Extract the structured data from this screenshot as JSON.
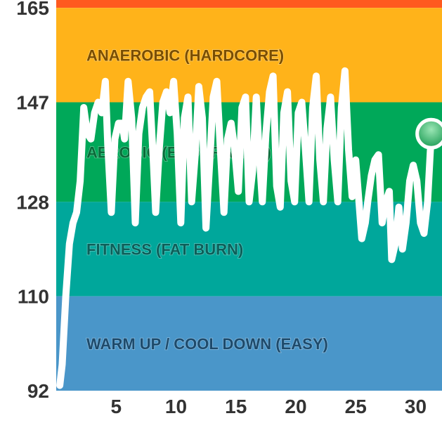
{
  "chart_data": {
    "type": "area",
    "title": "",
    "xlabel": "",
    "ylabel": "",
    "xlim": [
      0,
      32.2
    ],
    "ylim": [
      92,
      166.5
    ],
    "x_ticks": [
      5,
      10,
      15,
      20,
      25,
      30
    ],
    "y_ticks": [
      92,
      110,
      128,
      147,
      165
    ],
    "zones": [
      {
        "label": "",
        "range": [
          165,
          166.5
        ],
        "color": "#ff5a1f"
      },
      {
        "label": "ANAEROBIC  (HARDCORE)",
        "range": [
          147,
          165
        ],
        "color": "#ffb31a",
        "text_color": "#7a4e00"
      },
      {
        "label": "AEROBIC  (ENDURANCE)",
        "range": [
          128,
          147
        ],
        "color": "#00a859",
        "text_color": "#0b6b3a"
      },
      {
        "label": "FITNESS  (FAT BURN)",
        "range": [
          110,
          128
        ],
        "color": "#00a79b",
        "text_color": "#0c5f59"
      },
      {
        "label": "WARM UP / COOL DOWN (EASY)",
        "range": [
          92,
          110
        ],
        "color": "#4a96c9",
        "text_color": "#1d4a6b"
      }
    ],
    "series": [
      {
        "color": "#ffffff",
        "points": [
          [
            0.3,
            93
          ],
          [
            0.5,
            97
          ],
          [
            0.8,
            110
          ],
          [
            1.1,
            120
          ],
          [
            1.4,
            124
          ],
          [
            1.7,
            126
          ],
          [
            2.0,
            132
          ],
          [
            2.3,
            146
          ],
          [
            2.6,
            141
          ],
          [
            2.9,
            140
          ],
          [
            3.2,
            145
          ],
          [
            3.5,
            147
          ],
          [
            3.8,
            145
          ],
          [
            4.1,
            151
          ],
          [
            4.3,
            139
          ],
          [
            4.6,
            126
          ],
          [
            4.9,
            140
          ],
          [
            5.2,
            143
          ],
          [
            5.5,
            143
          ],
          [
            5.7,
            140
          ],
          [
            6.0,
            151
          ],
          [
            6.3,
            144
          ],
          [
            6.6,
            124
          ],
          [
            6.9,
            141
          ],
          [
            7.2,
            146
          ],
          [
            7.5,
            148
          ],
          [
            7.8,
            149
          ],
          [
            8.1,
            136
          ],
          [
            8.3,
            126
          ],
          [
            8.6,
            138
          ],
          [
            8.9,
            147
          ],
          [
            9.2,
            149
          ],
          [
            9.5,
            145
          ],
          [
            9.8,
            151
          ],
          [
            10.1,
            141
          ],
          [
            10.4,
            124
          ],
          [
            10.7,
            144
          ],
          [
            11.0,
            148
          ],
          [
            11.3,
            128
          ],
          [
            11.6,
            137
          ],
          [
            11.9,
            150
          ],
          [
            12.2,
            144
          ],
          [
            12.5,
            123
          ],
          [
            12.8,
            135
          ],
          [
            13.1,
            148
          ],
          [
            13.4,
            151
          ],
          [
            13.7,
            138
          ],
          [
            14.0,
            126
          ],
          [
            14.3,
            140
          ],
          [
            14.6,
            143
          ],
          [
            14.9,
            138
          ],
          [
            15.2,
            130
          ],
          [
            15.5,
            146
          ],
          [
            15.8,
            148
          ],
          [
            16.1,
            128
          ],
          [
            16.4,
            134
          ],
          [
            16.7,
            148
          ],
          [
            16.9,
            139
          ],
          [
            17.2,
            128
          ],
          [
            17.5,
            141
          ],
          [
            17.8,
            149
          ],
          [
            18.1,
            152
          ],
          [
            18.4,
            131
          ],
          [
            18.7,
            127
          ],
          [
            19.0,
            145
          ],
          [
            19.3,
            149
          ],
          [
            19.6,
            132
          ],
          [
            19.9,
            128
          ],
          [
            20.2,
            145
          ],
          [
            20.5,
            147
          ],
          [
            20.8,
            138
          ],
          [
            21.1,
            128
          ],
          [
            21.4,
            146
          ],
          [
            21.7,
            152
          ],
          [
            22.0,
            136
          ],
          [
            22.3,
            128
          ],
          [
            22.6,
            142
          ],
          [
            22.9,
            148
          ],
          [
            23.2,
            136
          ],
          [
            23.5,
            128
          ],
          [
            23.8,
            146
          ],
          [
            24.1,
            153
          ],
          [
            24.4,
            138
          ],
          [
            24.7,
            129
          ],
          [
            25.0,
            136
          ],
          [
            25.3,
            127
          ],
          [
            25.5,
            121
          ],
          [
            25.8,
            124
          ],
          [
            26.0,
            128
          ],
          [
            26.3,
            133
          ],
          [
            26.6,
            136
          ],
          [
            26.9,
            137
          ],
          [
            27.2,
            124
          ],
          [
            27.5,
            128
          ],
          [
            27.8,
            130
          ],
          [
            28.0,
            117
          ],
          [
            28.3,
            120
          ],
          [
            28.6,
            127
          ],
          [
            28.9,
            119
          ],
          [
            29.2,
            124
          ],
          [
            29.5,
            132
          ],
          [
            29.8,
            135
          ],
          [
            30.1,
            132
          ],
          [
            30.4,
            124
          ],
          [
            30.7,
            122
          ],
          [
            31.0,
            128
          ],
          [
            31.3,
            141
          ]
        ],
        "current_marker": [
          31.3,
          141
        ]
      }
    ]
  }
}
